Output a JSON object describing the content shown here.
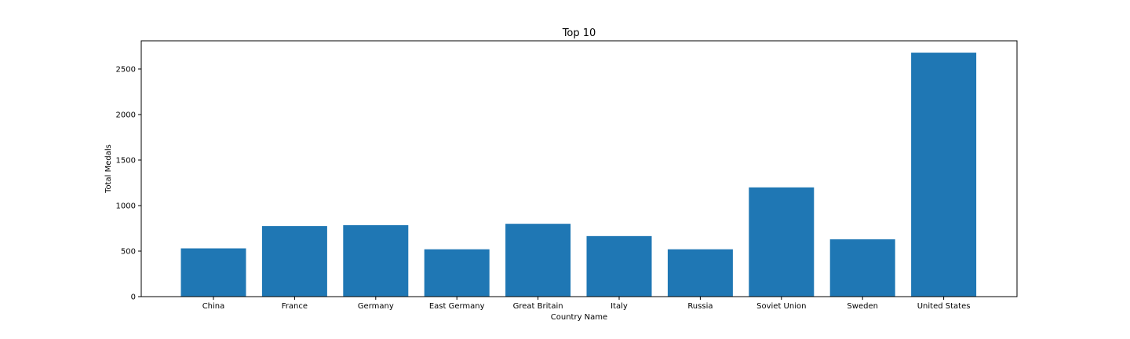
{
  "chart_data": {
    "type": "bar",
    "title": "Top 10",
    "xlabel": "Country Name",
    "ylabel": "Total Medals",
    "categories": [
      "China",
      "France",
      "Germany",
      "East Germany",
      "Great Britain",
      "Italy",
      "Russia",
      "Soviet Union",
      "Sweden",
      "United States"
    ],
    "values": [
      530,
      775,
      785,
      520,
      800,
      665,
      520,
      1200,
      630,
      2680
    ],
    "ylim": [
      0,
      2810
    ],
    "yticks": [
      0,
      500,
      1000,
      1500,
      2000,
      2500
    ],
    "grid": false,
    "bar_color": "#1f77b4"
  }
}
